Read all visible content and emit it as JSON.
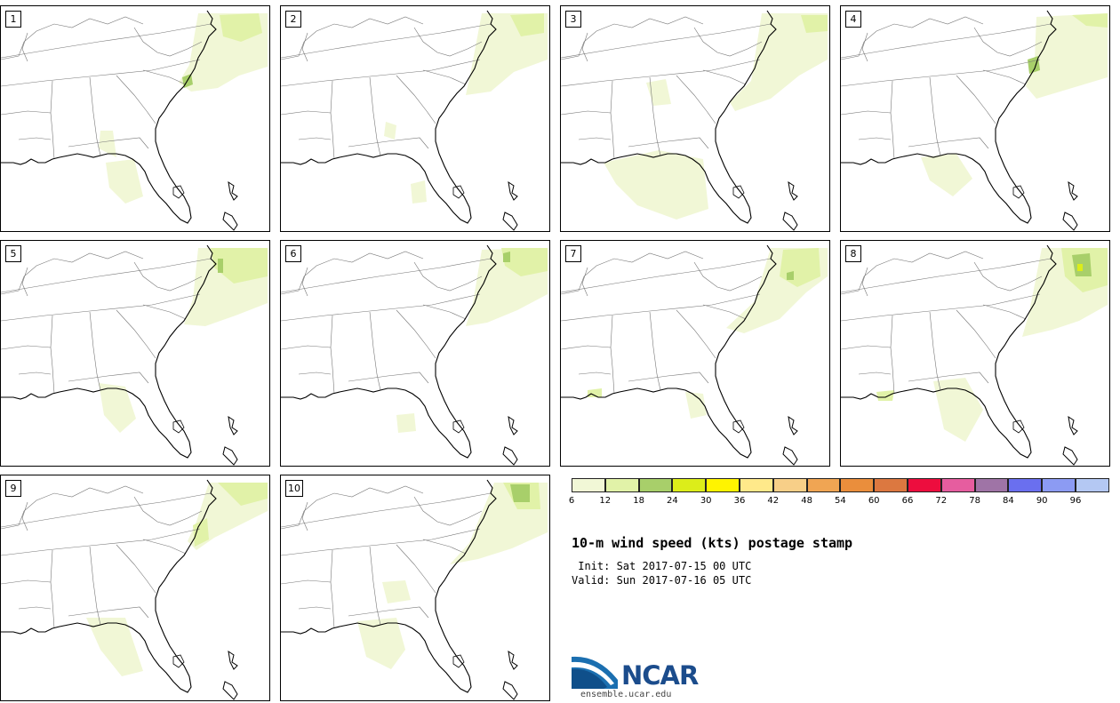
{
  "panels": [
    {
      "label": "1"
    },
    {
      "label": "2"
    },
    {
      "label": "3"
    },
    {
      "label": "4"
    },
    {
      "label": "5"
    },
    {
      "label": "6"
    },
    {
      "label": "7"
    },
    {
      "label": "8"
    },
    {
      "label": "9"
    },
    {
      "label": "10"
    }
  ],
  "colorbar": {
    "colors": [
      "#f1f7d6",
      "#e1f2a8",
      "#a8cf6a",
      "#dced1a",
      "#fff400",
      "#ffe98a",
      "#f7cf88",
      "#f0a553",
      "#ea8e3c",
      "#dc7840",
      "#ed0d3e",
      "#e65d9f",
      "#9f74a6",
      "#6a6fef",
      "#8c9bf3",
      "#b4c8f3"
    ],
    "ticks": [
      "6",
      "12",
      "18",
      "24",
      "30",
      "36",
      "42",
      "48",
      "54",
      "60",
      "66",
      "72",
      "78",
      "84",
      "90",
      "96"
    ]
  },
  "title": "10-m wind speed (kts) postage stamp",
  "init_line": " Init: Sat 2017-07-15 00 UTC",
  "valid_line": "Valid: Sun 2017-07-16 05 UTC",
  "logo": {
    "text": "NCAR",
    "url": "ensemble.ucar.edu"
  }
}
